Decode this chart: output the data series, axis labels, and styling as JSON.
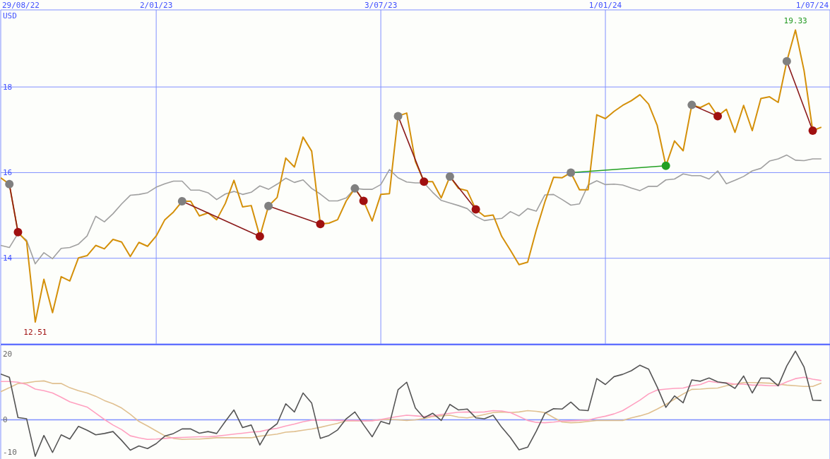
{
  "chart_data": [
    {
      "type": "line",
      "ylabel": "USD",
      "marker": "none",
      "line_style": "solid",
      "grid": true,
      "legend": false,
      "x": [
        "2022-08-29",
        "2022-09-05",
        "2022-09-12",
        "2022-09-19",
        "2022-09-26",
        "2022-10-03",
        "2022-10-10",
        "2022-10-17",
        "2022-10-24",
        "2022-10-31",
        "2022-11-07",
        "2022-11-14",
        "2022-11-21",
        "2022-11-28",
        "2022-12-05",
        "2022-12-12",
        "2022-12-19",
        "2022-12-26",
        "2023-01-02",
        "2023-01-09",
        "2023-01-16",
        "2023-01-23",
        "2023-01-30",
        "2023-02-06",
        "2023-02-13",
        "2023-02-20",
        "2023-02-27",
        "2023-03-06",
        "2023-03-13",
        "2023-03-20",
        "2023-03-27",
        "2023-04-03",
        "2023-04-10",
        "2023-04-17",
        "2023-04-24",
        "2023-05-01",
        "2023-05-08",
        "2023-05-15",
        "2023-05-22",
        "2023-05-29",
        "2023-06-05",
        "2023-06-12",
        "2023-06-19",
        "2023-06-26",
        "2023-07-03",
        "2023-07-10",
        "2023-07-17",
        "2023-07-24",
        "2023-07-31",
        "2023-08-07",
        "2023-08-14",
        "2023-08-21",
        "2023-08-28",
        "2023-09-04",
        "2023-09-11",
        "2023-09-18",
        "2023-09-25",
        "2023-10-02",
        "2023-10-09",
        "2023-10-16",
        "2023-10-23",
        "2023-10-30",
        "2023-11-06",
        "2023-11-13",
        "2023-11-20",
        "2023-11-27",
        "2023-12-04",
        "2023-12-11",
        "2023-12-18",
        "2023-12-25",
        "2024-01-01",
        "2024-01-08",
        "2024-01-15",
        "2024-01-22",
        "2024-01-29",
        "2024-02-05",
        "2024-02-12",
        "2024-02-19",
        "2024-02-26",
        "2024-03-04",
        "2024-03-11",
        "2024-03-18",
        "2024-03-25",
        "2024-04-01",
        "2024-04-08",
        "2024-04-15",
        "2024-04-22",
        "2024-04-29",
        "2024-05-06",
        "2024-05-13",
        "2024-05-20",
        "2024-05-27",
        "2024-06-03",
        "2024-06-10",
        "2024-06-17",
        "2024-06-24"
      ],
      "xlim": [
        "2022-08-29",
        "2024-07-01"
      ],
      "xticks": [
        {
          "value": "2022-08-29",
          "label": "29/08/22"
        },
        {
          "value": "2023-01-02",
          "label": "2/01/23"
        },
        {
          "value": "2023-07-03",
          "label": "3/07/23"
        },
        {
          "value": "2024-01-01",
          "label": "1/01/24"
        },
        {
          "value": "2024-07-01",
          "label": "1/07/24"
        }
      ],
      "ylim": [
        12,
        19.8
      ],
      "yticks": [
        14,
        16,
        18
      ],
      "series": [
        {
          "color": "#a0a0a0",
          "values": [
            14.3,
            14.25,
            14.58,
            14.42,
            13.87,
            14.13,
            13.99,
            14.23,
            14.25,
            14.33,
            14.52,
            14.98,
            14.85,
            15.04,
            15.27,
            15.47,
            15.49,
            15.53,
            15.66,
            15.74,
            15.8,
            15.8,
            15.59,
            15.59,
            15.53,
            15.37,
            15.5,
            15.56,
            15.49,
            15.54,
            15.69,
            15.61,
            15.73,
            15.87,
            15.77,
            15.83,
            15.63,
            15.5,
            15.34,
            15.34,
            15.41,
            15.63,
            15.61,
            15.61,
            15.72,
            16.07,
            15.88,
            15.78,
            15.76,
            15.76,
            15.54,
            15.35,
            15.29,
            15.23,
            15.16,
            14.98,
            14.88,
            14.91,
            14.93,
            15.09,
            14.99,
            15.16,
            15.1,
            15.48,
            15.49,
            15.37,
            15.24,
            15.27,
            15.71,
            15.81,
            15.72,
            15.73,
            15.71,
            15.64,
            15.58,
            15.68,
            15.68,
            15.83,
            15.85,
            15.97,
            15.93,
            15.93,
            15.85,
            16.04,
            15.74,
            15.82,
            15.91,
            16.04,
            16.1,
            16.27,
            16.32,
            16.41,
            16.29,
            16.28,
            16.32,
            16.32
          ]
        },
        {
          "color": "#d4900a",
          "values": [
            15.88,
            15.73,
            14.61,
            14.39,
            12.51,
            13.51,
            12.73,
            13.57,
            13.47,
            14.01,
            14.06,
            14.3,
            14.22,
            14.44,
            14.38,
            14.04,
            14.37,
            14.28,
            14.52,
            14.9,
            15.08,
            15.33,
            15.33,
            14.99,
            15.06,
            14.9,
            15.28,
            15.82,
            15.2,
            15.23,
            14.51,
            15.22,
            15.42,
            16.34,
            16.13,
            16.83,
            16.5,
            14.8,
            14.82,
            14.9,
            15.34,
            15.63,
            15.34,
            14.87,
            15.49,
            15.51,
            17.32,
            17.39,
            16.26,
            15.79,
            15.79,
            15.41,
            15.91,
            15.63,
            15.58,
            15.14,
            14.98,
            15.01,
            14.51,
            14.19,
            13.85,
            13.91,
            14.66,
            15.32,
            15.89,
            15.88,
            16.0,
            15.6,
            15.6,
            17.35,
            17.26,
            17.43,
            17.57,
            17.68,
            17.82,
            17.6,
            17.1,
            16.16,
            16.74,
            16.51,
            17.58,
            17.52,
            17.62,
            17.32,
            17.48,
            16.94,
            17.57,
            16.98,
            17.73,
            17.77,
            17.64,
            18.6,
            19.33,
            18.38,
            16.98,
            17.06
          ]
        },
        {
          "color": "#8b1a1a",
          "x": [
            "2022-09-05",
            "2022-09-12"
          ],
          "values": [
            15.73,
            14.61
          ]
        },
        {
          "color": "#8b1a1a",
          "x": [
            "2023-01-23",
            "2023-03-27"
          ],
          "values": [
            15.33,
            14.51
          ]
        },
        {
          "color": "#8b1a1a",
          "x": [
            "2023-04-03",
            "2023-05-15"
          ],
          "values": [
            15.22,
            14.8
          ]
        },
        {
          "color": "#8b1a1a",
          "x": [
            "2023-06-12",
            "2023-06-19"
          ],
          "values": [
            15.63,
            15.34
          ]
        },
        {
          "color": "#8b1a1a",
          "x": [
            "2023-07-17",
            "2023-08-07"
          ],
          "values": [
            17.32,
            15.79
          ]
        },
        {
          "color": "#8b1a1a",
          "x": [
            "2023-08-28",
            "2023-09-18"
          ],
          "values": [
            15.91,
            15.14
          ]
        },
        {
          "color": "#22a022",
          "x": [
            "2023-12-04",
            "2024-02-19"
          ],
          "values": [
            16.0,
            16.16
          ]
        },
        {
          "color": "#8b1a1a",
          "x": [
            "2024-03-11",
            "2024-04-01"
          ],
          "values": [
            17.58,
            17.32
          ]
        },
        {
          "color": "#8b1a1a",
          "x": [
            "2024-05-27",
            "2024-06-17"
          ],
          "values": [
            18.6,
            16.98
          ]
        },
        {
          "type": "scatter",
          "marker": "circle",
          "color": "#808080",
          "x": [
            "2022-09-05",
            "2023-01-23",
            "2023-04-03",
            "2023-06-12",
            "2023-07-17",
            "2023-08-28",
            "2023-12-04",
            "2024-03-11",
            "2024-05-27"
          ],
          "values": [
            15.73,
            15.33,
            15.22,
            15.63,
            17.32,
            15.91,
            16.0,
            17.58,
            18.6
          ]
        },
        {
          "type": "scatter",
          "marker": "circle",
          "color": "#a01010",
          "x": [
            "2022-09-12",
            "2023-03-27",
            "2023-05-15",
            "2023-06-19",
            "2023-08-07",
            "2023-09-18",
            "2024-04-01",
            "2024-06-17"
          ],
          "values": [
            14.61,
            14.51,
            14.8,
            15.34,
            15.79,
            15.14,
            17.32,
            16.98
          ]
        },
        {
          "type": "scatter",
          "marker": "circle",
          "color": "#22a022",
          "x": [
            "2024-02-19"
          ],
          "values": [
            16.16
          ]
        }
      ],
      "annotations": [
        {
          "text": "19.33",
          "x": "2024-06-03",
          "y": 19.33
        },
        {
          "text": "12.51",
          "x": "2022-09-26",
          "y": 12.51
        }
      ]
    },
    {
      "type": "line",
      "marker": "none",
      "line_style": "solid",
      "grid": "x",
      "legend": false,
      "tick_labels": "y",
      "x": [
        "2022-08-29",
        "2022-09-05",
        "2022-09-12",
        "2022-09-19",
        "2022-09-26",
        "2022-10-03",
        "2022-10-10",
        "2022-10-17",
        "2022-10-24",
        "2022-10-31",
        "2022-11-07",
        "2022-11-14",
        "2022-11-21",
        "2022-11-28",
        "2022-12-05",
        "2022-12-12",
        "2022-12-19",
        "2022-12-26",
        "2023-01-02",
        "2023-01-09",
        "2023-01-16",
        "2023-01-23",
        "2023-01-30",
        "2023-02-06",
        "2023-02-13",
        "2023-02-20",
        "2023-02-27",
        "2023-03-06",
        "2023-03-13",
        "2023-03-20",
        "2023-03-27",
        "2023-04-03",
        "2023-04-10",
        "2023-04-17",
        "2023-04-24",
        "2023-05-01",
        "2023-05-08",
        "2023-05-15",
        "2023-05-22",
        "2023-05-29",
        "2023-06-05",
        "2023-06-12",
        "2023-06-19",
        "2023-06-26",
        "2023-07-03",
        "2023-07-10",
        "2023-07-17",
        "2023-07-24",
        "2023-07-31",
        "2023-08-07",
        "2023-08-14",
        "2023-08-21",
        "2023-08-28",
        "2023-09-04",
        "2023-09-11",
        "2023-09-18",
        "2023-09-25",
        "2023-10-02",
        "2023-10-09",
        "2023-10-16",
        "2023-10-23",
        "2023-10-30",
        "2023-11-06",
        "2023-11-13",
        "2023-11-20",
        "2023-11-27",
        "2023-12-04",
        "2023-12-11",
        "2023-12-18",
        "2023-12-25",
        "2024-01-01",
        "2024-01-08",
        "2024-01-15",
        "2024-01-22",
        "2024-01-29",
        "2024-02-05",
        "2024-02-12",
        "2024-02-19",
        "2024-02-26",
        "2024-03-04",
        "2024-03-11",
        "2024-03-18",
        "2024-03-25",
        "2024-04-01",
        "2024-04-08",
        "2024-04-15",
        "2024-04-22",
        "2024-04-29",
        "2024-05-06",
        "2024-05-13",
        "2024-05-20",
        "2024-05-27",
        "2024-06-03",
        "2024-06-10",
        "2024-06-17",
        "2024-06-24"
      ],
      "xlim": [
        "2022-08-29",
        "2024-07-01"
      ],
      "xticks": [
        "2022-08-29",
        "2023-01-02",
        "2023-07-03",
        "2024-01-01",
        "2024-07-01"
      ],
      "ylim": [
        -12,
        23
      ],
      "yticks": [
        -10,
        0,
        20
      ],
      "ref_lines": [
        {
          "axis": "y",
          "value": 0,
          "color": "#8090ff"
        }
      ],
      "series": [
        {
          "color": "#e0c090",
          "values": [
            8.6,
            9.8,
            11.1,
            11.3,
            11.7,
            11.9,
            11.1,
            11.1,
            9.8,
            8.9,
            8.2,
            7.2,
            5.9,
            4.9,
            3.6,
            1.7,
            -0.5,
            -1.9,
            -3.4,
            -4.9,
            -5.7,
            -6.0,
            -5.9,
            -5.9,
            -5.7,
            -5.5,
            -5.5,
            -5.5,
            -5.5,
            -5.5,
            -5.0,
            -4.7,
            -4.4,
            -3.8,
            -3.6,
            -3.2,
            -2.8,
            -2.3,
            -1.7,
            -1.1,
            -0.3,
            -0.3,
            -0.3,
            -0.2,
            0,
            0.1,
            0,
            -0.2,
            0,
            0.4,
            1.0,
            1.2,
            1.4,
            0.8,
            0.6,
            1.0,
            1.6,
            2.2,
            2.4,
            2.2,
            2.4,
            2.8,
            2.6,
            2.2,
            0.7,
            -0.7,
            -0.9,
            -0.8,
            -0.5,
            -0.2,
            -0.2,
            -0.2,
            -0.2,
            0.6,
            1.2,
            2.0,
            3.3,
            4.7,
            6.3,
            7.9,
            9.3,
            9.4,
            9.6,
            9.7,
            10.4,
            10.9,
            11.4,
            11.4,
            11.3,
            11.2,
            10.9,
            10.6,
            10.4,
            10.2,
            10.2,
            11.2
          ]
        },
        {
          "color": "#ffa0c0",
          "values": [
            11.7,
            11.7,
            11.5,
            10.8,
            9.4,
            8.9,
            8.2,
            6.9,
            5.5,
            4.7,
            3.9,
            2.0,
            0.1,
            -1.6,
            -3.0,
            -4.9,
            -5.5,
            -6.0,
            -5.9,
            -5.7,
            -5.5,
            -5.4,
            -5.3,
            -5.2,
            -5.2,
            -5.0,
            -4.7,
            -4.4,
            -4.1,
            -3.8,
            -3.6,
            -3.0,
            -2.6,
            -1.9,
            -1.3,
            -0.6,
            -0.1,
            -0.1,
            -0.1,
            -0.2,
            -0.2,
            -0.2,
            -0.3,
            -0.3,
            0.1,
            0.6,
            1.0,
            1.4,
            1.2,
            1.0,
            1.2,
            1.6,
            2.0,
            2.3,
            2.4,
            2.3,
            2.4,
            2.8,
            2.7,
            2.2,
            1.0,
            -0.2,
            -0.8,
            -0.9,
            -0.7,
            -0.4,
            -0.3,
            -0.2,
            -0.1,
            0.6,
            1.1,
            1.8,
            2.8,
            4.4,
            6.0,
            7.9,
            9.1,
            9.4,
            9.6,
            9.7,
            10.4,
            10.8,
            11.8,
            11.4,
            11.3,
            10.9,
            10.9,
            10.6,
            10.6,
            10.4,
            10.4,
            11.6,
            12.6,
            13.0,
            12.4,
            12.0
          ]
        },
        {
          "color": "#555555",
          "values": [
            14.0,
            13.0,
            0.7,
            0.3,
            -11.2,
            -4.8,
            -10.0,
            -4.6,
            -5.9,
            -2.0,
            -3.2,
            -4.6,
            -4.2,
            -3.6,
            -6.3,
            -9.3,
            -8.0,
            -8.8,
            -7.3,
            -5.0,
            -4.2,
            -2.8,
            -2.8,
            -4.1,
            -3.6,
            -4.2,
            -0.5,
            3.0,
            -2.4,
            -1.6,
            -7.7,
            -3.2,
            -1.2,
            4.9,
            2.4,
            8.2,
            5.1,
            -5.7,
            -4.8,
            -3.1,
            0.3,
            2.4,
            -1.5,
            -5.2,
            -0.5,
            -1.3,
            9.2,
            11.5,
            3.6,
            0.6,
            2.0,
            -0.2,
            4.7,
            3.0,
            3.3,
            0.6,
            0.3,
            1.4,
            -2.3,
            -5.4,
            -9.2,
            -8.4,
            -3.5,
            2.0,
            3.4,
            3.3,
            5.4,
            3.0,
            2.8,
            12.6,
            10.8,
            13.2,
            13.9,
            15.0,
            16.7,
            15.5,
            10.0,
            3.8,
            7.3,
            5.2,
            12.2,
            11.8,
            12.8,
            11.6,
            11.2,
            9.6,
            13.4,
            8.2,
            12.8,
            12.7,
            10.4,
            16.5,
            21.0,
            16.1,
            6.0,
            5.9
          ]
        }
      ]
    }
  ]
}
